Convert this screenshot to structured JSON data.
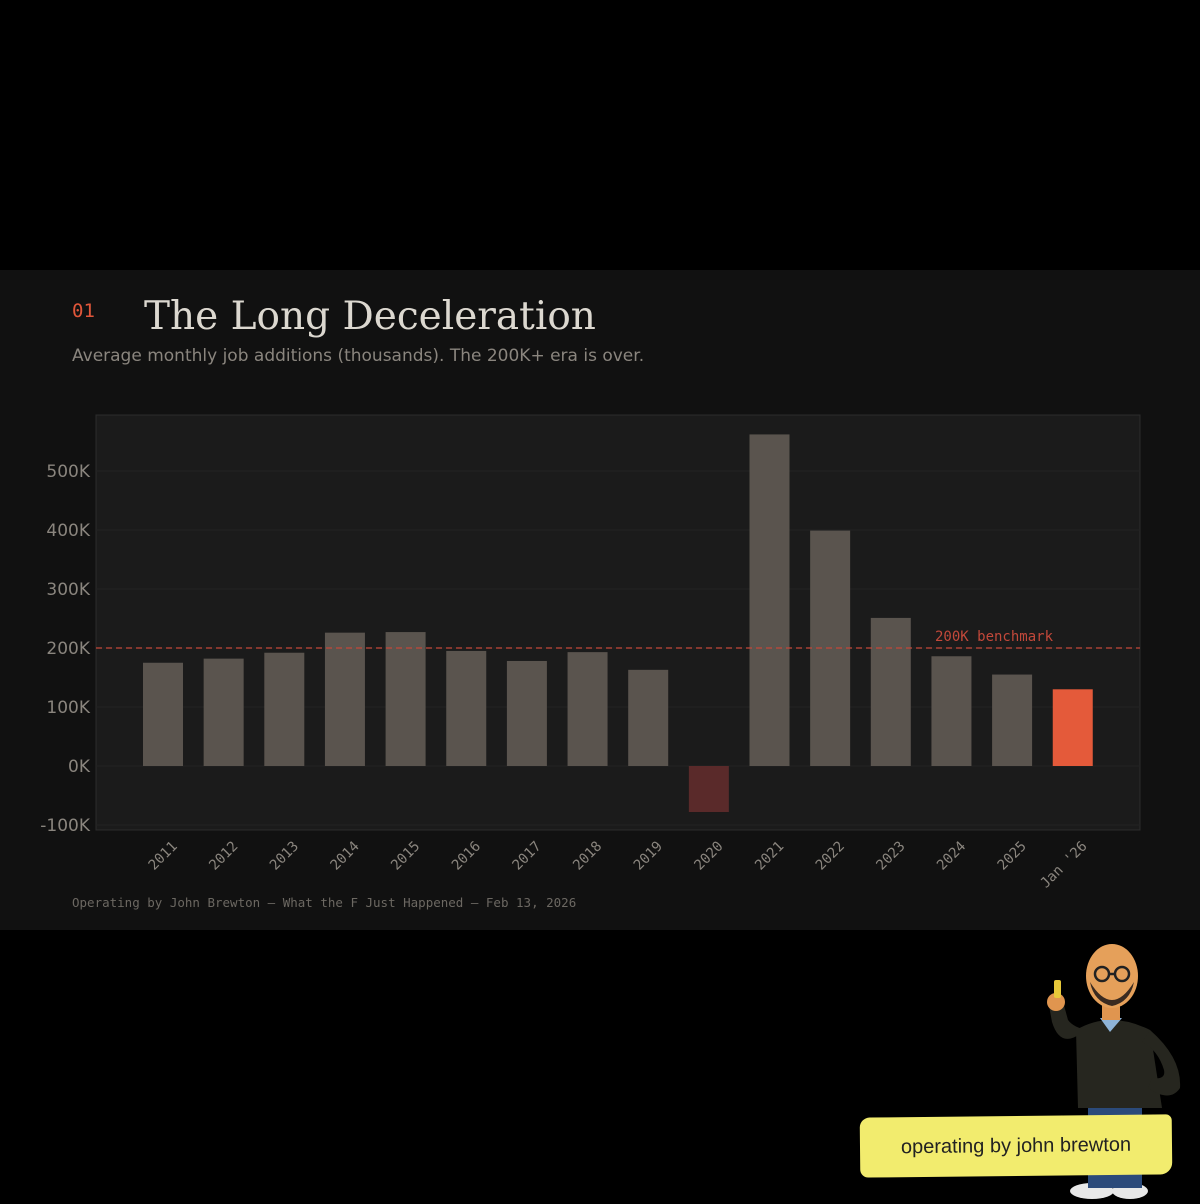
{
  "header": {
    "section_number": "01",
    "title": "The Long Deceleration",
    "subtitle": "Average monthly job additions (thousands). The 200K+ era is over."
  },
  "footer": {
    "credit": "Operating by John Brewton — What the F Just Happened — Feb 13, 2026"
  },
  "badge": {
    "text": "operating by john brewton"
  },
  "colors": {
    "bar": "#5a544e",
    "bar_negative": "#5a2a2a",
    "bar_highlight": "#e45a3a",
    "benchmark": "#c2483a",
    "axis_text": "#8a857e",
    "plot_bg": "#1b1b1b"
  },
  "chart_data": {
    "type": "bar",
    "categories": [
      "2011",
      "2012",
      "2013",
      "2014",
      "2015",
      "2016",
      "2017",
      "2018",
      "2019",
      "2020",
      "2021",
      "2022",
      "2023",
      "2024",
      "2025",
      "Jan '26"
    ],
    "values": [
      175,
      182,
      192,
      226,
      227,
      195,
      178,
      193,
      163,
      -78,
      562,
      399,
      251,
      186,
      155,
      130
    ],
    "highlight_index": 15,
    "negative_index": 9,
    "y_ticks": [
      -100,
      0,
      100,
      200,
      300,
      400,
      500
    ],
    "y_tick_labels": [
      "-100K",
      "0K",
      "100K",
      "200K",
      "300K",
      "400K",
      "500K"
    ],
    "ylim": [
      -110,
      595
    ],
    "benchmark": {
      "value": 200,
      "label": "200K benchmark"
    },
    "title": "The Long Deceleration",
    "xlabel": "",
    "ylabel": "",
    "grid": true
  }
}
